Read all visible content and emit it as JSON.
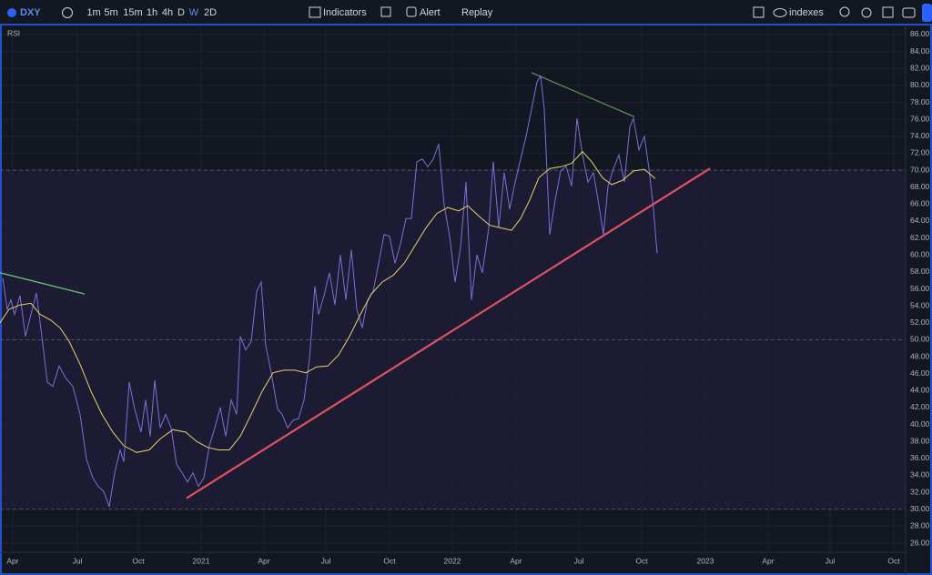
{
  "toolbar": {
    "symbol": "DXY",
    "intervals": [
      "1m",
      "5m",
      "15m",
      "1h",
      "4h",
      "D",
      "W",
      "2D"
    ],
    "active_interval": 6,
    "indicators": "Indicators",
    "alert": "Alert",
    "replay": "Replay",
    "compare": "indexes"
  },
  "chart_data": {
    "type": "line",
    "title": "RSI",
    "xlim": [
      0,
      995
    ],
    "xticks": [
      {
        "value": 14,
        "label": "Apr"
      },
      {
        "value": 85,
        "label": "Jul"
      },
      {
        "value": 152,
        "label": "Oct"
      },
      {
        "value": 221,
        "label": "2021"
      },
      {
        "value": 290,
        "label": "Apr"
      },
      {
        "value": 358,
        "label": "Jul"
      },
      {
        "value": 428,
        "label": "Oct"
      },
      {
        "value": 497,
        "label": "2022"
      },
      {
        "value": 567,
        "label": "Apr"
      },
      {
        "value": 636,
        "label": "Jul"
      },
      {
        "value": 705,
        "label": "Oct"
      },
      {
        "value": 775,
        "label": "2023"
      },
      {
        "value": 844,
        "label": "Apr"
      },
      {
        "value": 912,
        "label": "Jul"
      },
      {
        "value": 982,
        "label": "Oct"
      }
    ],
    "ylim": [
      24.93,
      87.07
    ],
    "yticks": [
      {
        "value": 86,
        "label": "86.00"
      },
      {
        "value": 84,
        "label": "84.00"
      },
      {
        "value": 82,
        "label": "82.00"
      },
      {
        "value": 80,
        "label": "80.00"
      },
      {
        "value": 78,
        "label": "78.00"
      },
      {
        "value": 76,
        "label": "76.00"
      },
      {
        "value": 74,
        "label": "74.00"
      },
      {
        "value": 72,
        "label": "72.00"
      },
      {
        "value": 70,
        "label": "70.00"
      },
      {
        "value": 68,
        "label": "68.00"
      },
      {
        "value": 66,
        "label": "66.00"
      },
      {
        "value": 64,
        "label": "64.00"
      },
      {
        "value": 62,
        "label": "62.00"
      },
      {
        "value": 60,
        "label": "60.00"
      },
      {
        "value": 58,
        "label": "58.00"
      },
      {
        "value": 56,
        "label": "56.00"
      },
      {
        "value": 54,
        "label": "54.00"
      },
      {
        "value": 52,
        "label": "52.00"
      },
      {
        "value": 50,
        "label": "50.00"
      },
      {
        "value": 48,
        "label": "48.00"
      },
      {
        "value": 46,
        "label": "46.00"
      },
      {
        "value": 44,
        "label": "44.00"
      },
      {
        "value": 42,
        "label": "42.00"
      },
      {
        "value": 40,
        "label": "40.00"
      },
      {
        "value": 38,
        "label": "38.00"
      },
      {
        "value": 36,
        "label": "36.00"
      },
      {
        "value": 34,
        "label": "34.00"
      },
      {
        "value": 32,
        "label": "32.00"
      },
      {
        "value": 30,
        "label": "30.00"
      },
      {
        "value": 28,
        "label": "28.00"
      },
      {
        "value": 26,
        "label": "26.00"
      }
    ],
    "levels": [
      70,
      50,
      30
    ],
    "band": [
      30,
      70
    ],
    "series": [
      {
        "color": "#7e6fd6",
        "x": [
          3,
          8,
          12,
          16,
          22,
          28,
          34,
          40,
          46,
          52,
          58,
          65,
          72,
          80,
          88,
          95,
          102,
          108,
          114,
          120,
          126,
          132,
          136,
          142,
          148,
          155,
          160,
          165,
          170,
          176,
          182,
          188,
          194,
          200,
          206,
          212,
          218,
          224,
          230,
          236,
          242,
          248,
          254,
          260,
          264,
          270,
          276,
          282,
          287,
          292,
          298,
          305,
          310,
          316,
          322,
          328,
          334,
          340,
          346,
          350,
          356,
          362,
          368,
          374,
          380,
          386,
          392,
          398,
          404,
          410,
          416,
          422,
          428,
          434,
          440,
          446,
          452,
          458,
          464,
          470,
          476,
          482,
          488,
          494,
          500,
          506,
          512,
          518,
          524,
          530,
          537,
          542,
          548,
          554,
          560,
          566,
          572,
          578,
          584,
          590,
          594,
          598,
          604,
          610,
          616,
          622,
          628,
          634,
          640,
          646,
          652,
          658,
          663,
          668,
          674,
          680,
          686,
          692,
          696,
          702,
          708,
          713,
          718,
          722
        ],
        "values": [
          57.3,
          53.6,
          54.7,
          53.0,
          55.2,
          50.4,
          53.0,
          55.5,
          50.4,
          45.0,
          44.5,
          46.9,
          45.5,
          44.5,
          41.2,
          35.9,
          33.7,
          32.7,
          32.1,
          30.3,
          34.3,
          37.0,
          35.6,
          45.0,
          41.8,
          39.1,
          42.9,
          38.6,
          45.2,
          39.6,
          41.2,
          39.6,
          35.3,
          34.3,
          33.2,
          34.3,
          32.7,
          33.7,
          37.5,
          39.6,
          42.0,
          38.6,
          42.9,
          41.2,
          50.4,
          48.8,
          49.8,
          55.7,
          56.8,
          49.3,
          46.1,
          41.8,
          41.2,
          39.6,
          40.5,
          40.7,
          42.9,
          47.7,
          56.3,
          53.0,
          55.2,
          57.9,
          54.1,
          60.0,
          54.7,
          60.6,
          53.6,
          51.4,
          54.7,
          55.7,
          59.0,
          62.4,
          62.2,
          59.0,
          61.3,
          64.3,
          64.3,
          71.0,
          71.3,
          70.4,
          71.3,
          73.1,
          65.9,
          62.2,
          56.8,
          60.9,
          68.6,
          54.7,
          60.0,
          57.9,
          63.2,
          71.0,
          63.2,
          69.7,
          65.4,
          68.6,
          71.3,
          74.0,
          77.2,
          80.4,
          81.1,
          77.2,
          62.4,
          66.5,
          69.9,
          70.5,
          68.1,
          76.1,
          71.8,
          68.6,
          69.7,
          65.9,
          62.4,
          68.1,
          70.2,
          71.8,
          68.6,
          75.1,
          76.1,
          72.4,
          74.0,
          70.2,
          65.4,
          60.2
        ]
      },
      {
        "color": "#e8d36a",
        "x": [
          0,
          10,
          22,
          34,
          44,
          56,
          66,
          76,
          88,
          100,
          112,
          124,
          136,
          150,
          164,
          176,
          190,
          204,
          216,
          228,
          240,
          252,
          264,
          276,
          288,
          300,
          312,
          324,
          336,
          348,
          360,
          372,
          384,
          396,
          408,
          420,
          432,
          444,
          456,
          468,
          480,
          492,
          504,
          514,
          526,
          538,
          550,
          562,
          572,
          582,
          592,
          604,
          616,
          628,
          640,
          650,
          662,
          672,
          684,
          696,
          708,
          720
        ],
        "values": [
          52.0,
          53.6,
          54.1,
          54.3,
          53.0,
          52.3,
          51.4,
          49.8,
          47.1,
          43.9,
          41.2,
          39.1,
          37.5,
          36.7,
          37.0,
          38.3,
          39.4,
          39.1,
          38.0,
          37.3,
          37.0,
          37.0,
          38.6,
          41.2,
          43.9,
          46.1,
          46.4,
          46.4,
          46.1,
          46.8,
          46.9,
          48.2,
          50.4,
          53.0,
          55.4,
          56.8,
          57.6,
          59.0,
          61.1,
          63.2,
          64.9,
          65.6,
          65.2,
          65.8,
          64.6,
          63.5,
          63.2,
          62.9,
          64.3,
          66.5,
          69.1,
          70.2,
          70.4,
          70.8,
          72.2,
          71.0,
          69.1,
          68.3,
          68.8,
          69.9,
          70.1,
          69.0
        ]
      }
    ],
    "trend_lines": [
      {
        "color": "#6fbf73",
        "x": [
          0,
          93
        ],
        "values": [
          57.9,
          55.4
        ]
      },
      {
        "color": "#5a8a55",
        "x": [
          584,
          697
        ],
        "values": [
          81.5,
          76.3
        ]
      },
      {
        "color": "#e0525e",
        "x": [
          205,
          780
        ],
        "values": [
          31.3,
          70.2
        ]
      }
    ]
  }
}
